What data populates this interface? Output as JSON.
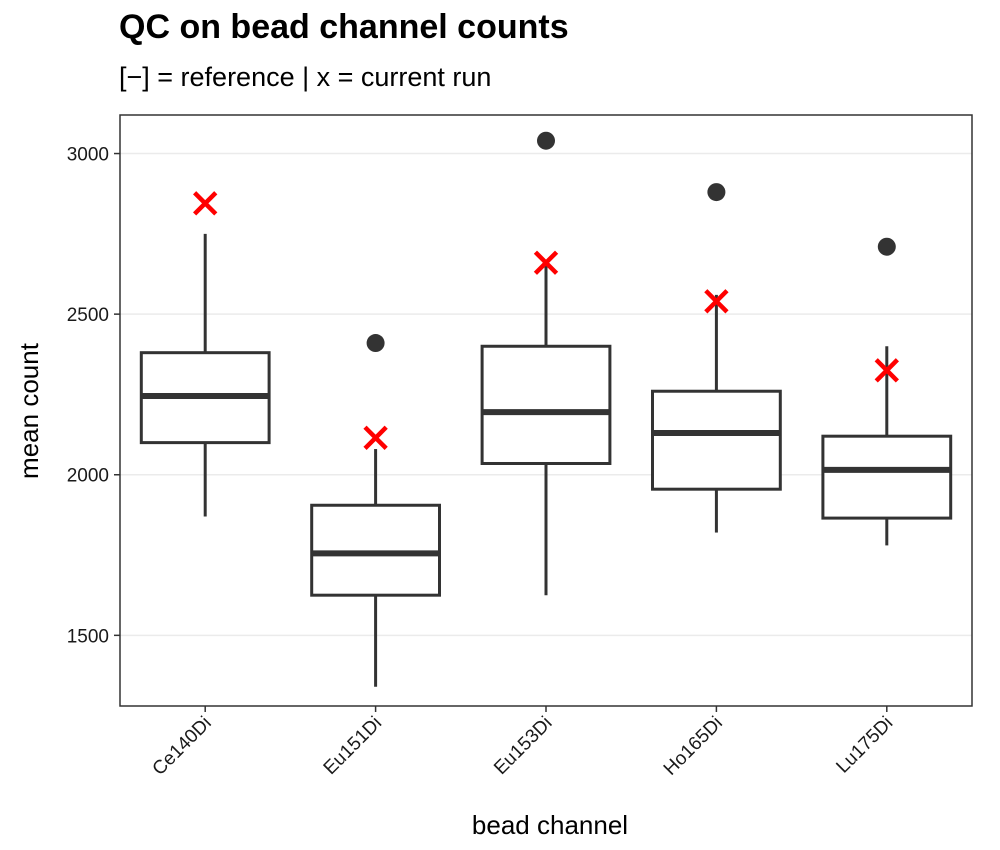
{
  "chart_data": {
    "type": "box",
    "title": "QC on bead channel counts",
    "subtitle": "[−] = reference | x = current run",
    "xlabel": "bead channel",
    "ylabel": "mean count",
    "ylim": [
      1280,
      3120
    ],
    "yticks": [
      1500,
      2000,
      2500,
      3000
    ],
    "grid": true,
    "categories": [
      "Ce140Di",
      "Eu151Di",
      "Eu153Di",
      "Ho165Di",
      "Lu175Di"
    ],
    "boxes": [
      {
        "category": "Ce140Di",
        "whisker_low": 1870,
        "q1": 2100,
        "median": 2245,
        "q3": 2380,
        "whisker_high": 2750,
        "outliers": [],
        "current_run": 2845
      },
      {
        "category": "Eu151Di",
        "whisker_low": 1340,
        "q1": 1625,
        "median": 1755,
        "q3": 1905,
        "whisker_high": 2080,
        "outliers": [
          2410
        ],
        "current_run": 2115
      },
      {
        "category": "Eu153Di",
        "whisker_low": 1625,
        "q1": 2035,
        "median": 2195,
        "q3": 2400,
        "whisker_high": 2650,
        "outliers": [
          3040
        ],
        "current_run": 2660
      },
      {
        "category": "Ho165Di",
        "whisker_low": 1820,
        "q1": 1955,
        "median": 2130,
        "q3": 2260,
        "whisker_high": 2560,
        "outliers": [
          2880
        ],
        "current_run": 2540
      },
      {
        "category": "Lu175Di",
        "whisker_low": 1780,
        "q1": 1865,
        "median": 2015,
        "q3": 2120,
        "whisker_high": 2400,
        "outliers": [
          2710
        ],
        "current_run": 2325
      }
    ],
    "colors": {
      "box": "#333333",
      "outlier": "#333333",
      "current_run": "#ff0000",
      "grid": "#ebebeb",
      "panel_border": "#333333"
    }
  }
}
